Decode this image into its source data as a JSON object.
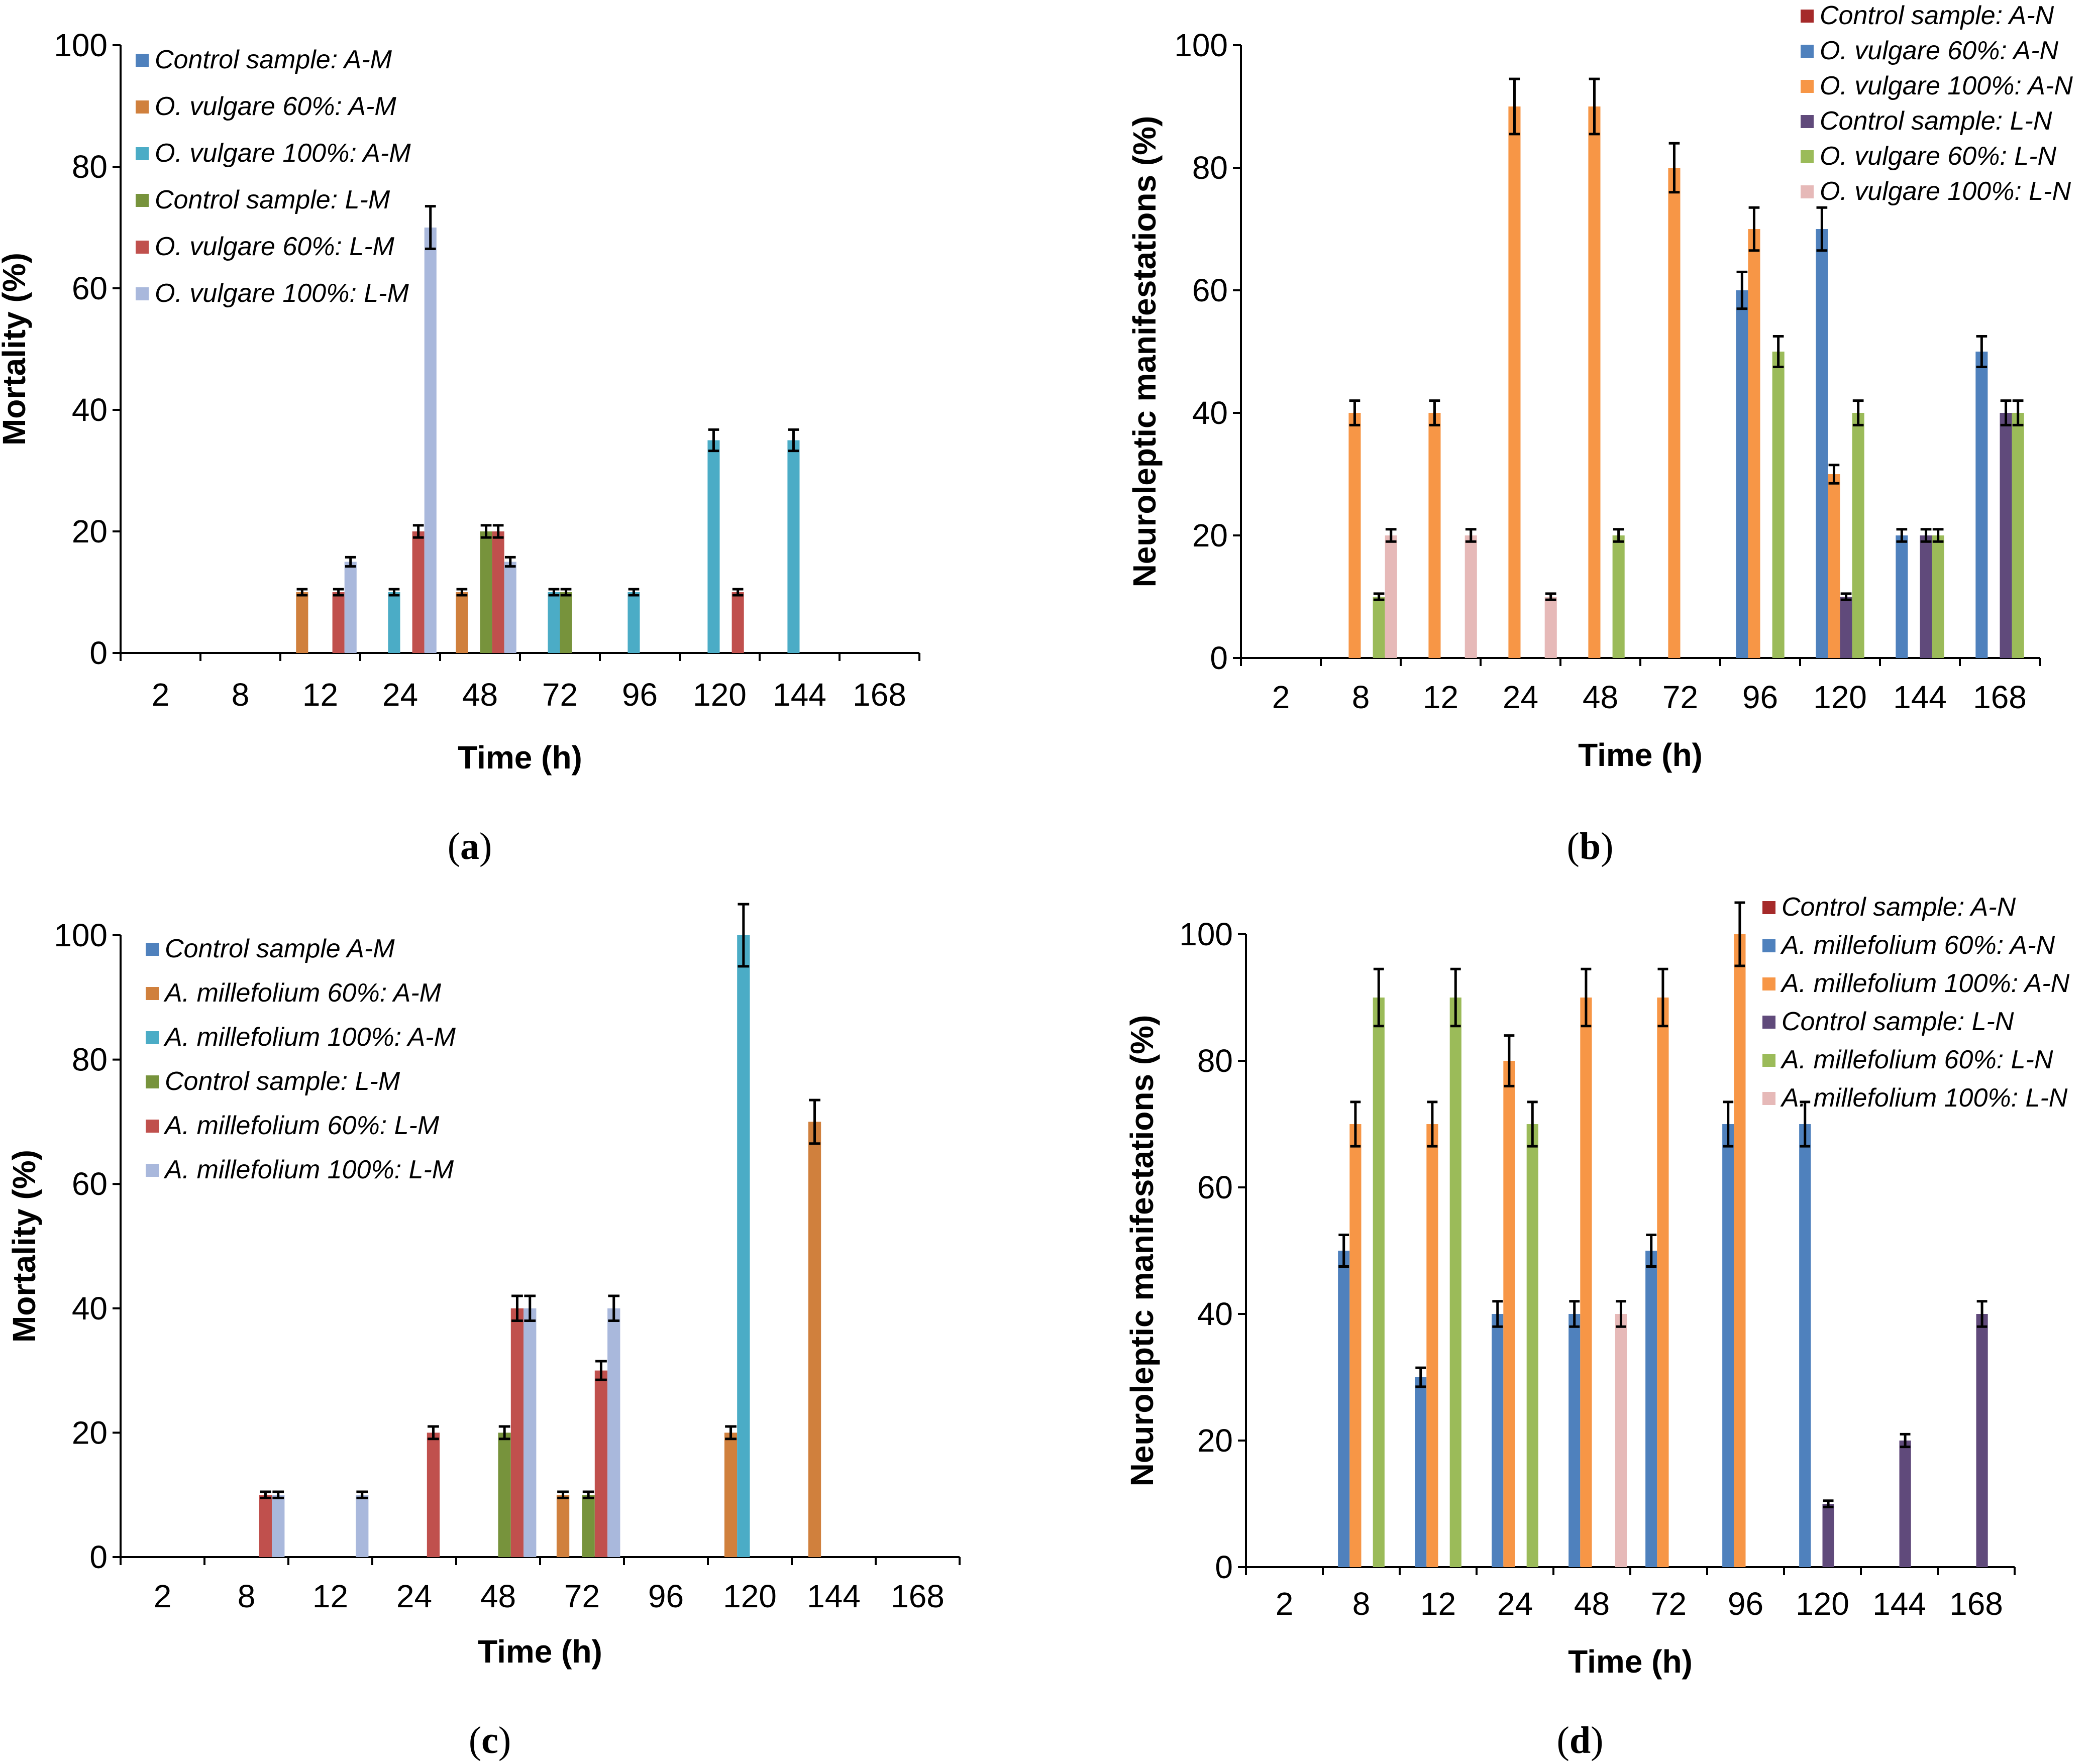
{
  "chart_data": [
    {
      "type": "bar",
      "caption_letter": "a",
      "xlabel": "Time (h)",
      "ylabel": "Mortality (%)",
      "ylim": [
        0,
        100
      ],
      "yticks": [
        "0",
        "20",
        "40",
        "60",
        "80",
        "100"
      ],
      "categories": [
        "2",
        "8",
        "12",
        "24",
        "48",
        "72",
        "96",
        "120",
        "144",
        "168"
      ],
      "legend_position": "top-left",
      "series": [
        {
          "name": "Control sample: A-M",
          "color": "#4f81bd",
          "values": [
            0,
            0,
            0,
            0,
            0,
            0,
            0,
            0,
            0,
            0
          ]
        },
        {
          "name": "O. vulgare 60%: A-M",
          "color": "#d0803d",
          "values": [
            0,
            0,
            10,
            0,
            10,
            0,
            0,
            0,
            0,
            0
          ]
        },
        {
          "name": "O. vulgare 100%: A-M",
          "color": "#4bacc6",
          "values": [
            0,
            0,
            0,
            10,
            0,
            10,
            10,
            35,
            35,
            0
          ]
        },
        {
          "name": "Control sample: L-M",
          "color": "#77933c",
          "values": [
            0,
            0,
            0,
            0,
            20,
            10,
            0,
            0,
            0,
            0
          ]
        },
        {
          "name": "O. vulgare 60%: L-M",
          "color": "#c0504d",
          "values": [
            0,
            0,
            10,
            20,
            20,
            0,
            0,
            10,
            0,
            0
          ]
        },
        {
          "name": "O. vulgare 100%: L-M",
          "color": "#a9b8dc",
          "values": [
            0,
            0,
            15,
            70,
            15,
            0,
            0,
            0,
            0,
            0
          ]
        }
      ]
    },
    {
      "type": "bar",
      "caption_letter": "b",
      "xlabel": "Time (h)",
      "ylabel": "Neuroleptic manifestations (%)",
      "ylim": [
        0,
        100
      ],
      "yticks": [
        "0",
        "20",
        "40",
        "60",
        "80",
        "100"
      ],
      "categories": [
        "2",
        "8",
        "12",
        "24",
        "48",
        "72",
        "96",
        "120",
        "144",
        "168"
      ],
      "legend_position": "top-right",
      "series": [
        {
          "name": "Control sample: A-N",
          "color": "#a52a2a",
          "values": [
            0,
            0,
            0,
            0,
            0,
            0,
            0,
            0,
            0,
            0
          ]
        },
        {
          "name": "O. vulgare 60%: A-N",
          "color": "#4f81bd",
          "values": [
            0,
            0,
            0,
            0,
            0,
            0,
            60,
            70,
            20,
            50
          ]
        },
        {
          "name": "O. vulgare 100%: A-N",
          "color": "#f79646",
          "values": [
            0,
            40,
            40,
            90,
            90,
            80,
            70,
            30,
            0,
            0
          ]
        },
        {
          "name": "Control sample: L-N",
          "color": "#604a7b",
          "values": [
            0,
            0,
            0,
            0,
            0,
            0,
            0,
            10,
            20,
            40
          ]
        },
        {
          "name": "O. vulgare 60%: L-N",
          "color": "#9bbb59",
          "values": [
            0,
            10,
            0,
            0,
            20,
            0,
            50,
            40,
            20,
            40
          ]
        },
        {
          "name": "O. vulgare 100%: L-N",
          "color": "#e6b9b8",
          "values": [
            0,
            20,
            20,
            10,
            0,
            0,
            0,
            0,
            0,
            0
          ]
        }
      ]
    },
    {
      "type": "bar",
      "caption_letter": "c",
      "xlabel": "Time (h)",
      "ylabel": "Mortality (%)",
      "ylim": [
        0,
        100
      ],
      "yticks": [
        "0",
        "20",
        "40",
        "60",
        "80",
        "100"
      ],
      "categories": [
        "2",
        "8",
        "12",
        "24",
        "48",
        "72",
        "96",
        "120",
        "144",
        "168"
      ],
      "legend_position": "top-left",
      "series": [
        {
          "name": "Control sample A-M",
          "color": "#4f81bd",
          "values": [
            0,
            0,
            0,
            0,
            0,
            0,
            0,
            0,
            0,
            0
          ]
        },
        {
          "name": "A. millefolium 60%: A-M",
          "color": "#d0803d",
          "values": [
            0,
            0,
            0,
            0,
            0,
            10,
            0,
            20,
            70,
            0
          ]
        },
        {
          "name": "A. millefolium 100%: A-M",
          "color": "#4bacc6",
          "values": [
            0,
            0,
            0,
            0,
            0,
            0,
            0,
            100,
            0,
            0
          ]
        },
        {
          "name": "Control sample: L-M",
          "color": "#77933c",
          "values": [
            0,
            0,
            0,
            0,
            20,
            10,
            0,
            0,
            0,
            0
          ]
        },
        {
          "name": "A. millefolium 60%: L-M",
          "color": "#c0504d",
          "values": [
            0,
            10,
            0,
            20,
            40,
            30,
            0,
            0,
            0,
            0
          ]
        },
        {
          "name": "A. millefolium 100%: L-M",
          "color": "#a9b8dc",
          "values": [
            0,
            10,
            10,
            0,
            40,
            40,
            0,
            0,
            0,
            0
          ]
        }
      ]
    },
    {
      "type": "bar",
      "caption_letter": "d",
      "xlabel": "Time (h)",
      "ylabel": "Neuroleptic manifestations (%)",
      "ylim": [
        0,
        100
      ],
      "yticks": [
        "0",
        "20",
        "40",
        "60",
        "80",
        "100"
      ],
      "categories": [
        "2",
        "8",
        "12",
        "24",
        "48",
        "72",
        "96",
        "120",
        "144",
        "168"
      ],
      "legend_position": "top-right",
      "series": [
        {
          "name": "Control sample: A-N",
          "color": "#a52a2a",
          "values": [
            0,
            0,
            0,
            0,
            0,
            0,
            0,
            0,
            0,
            0
          ]
        },
        {
          "name": "A. millefolium 60%: A-N",
          "color": "#4f81bd",
          "values": [
            0,
            50,
            30,
            40,
            40,
            50,
            70,
            70,
            0,
            0
          ]
        },
        {
          "name": "A. millefolium 100%: A-N",
          "color": "#f79646",
          "values": [
            0,
            70,
            70,
            80,
            90,
            90,
            100,
            0,
            0,
            0
          ]
        },
        {
          "name": "Control sample: L-N",
          "color": "#604a7b",
          "values": [
            0,
            0,
            0,
            0,
            0,
            0,
            0,
            10,
            20,
            40
          ]
        },
        {
          "name": "A. millefolium 60%: L-N",
          "color": "#9bbb59",
          "values": [
            0,
            90,
            90,
            70,
            0,
            0,
            0,
            0,
            0,
            0
          ]
        },
        {
          "name": "A. millefolium 100%: L-N",
          "color": "#e6b9b8",
          "values": [
            0,
            0,
            0,
            0,
            40,
            0,
            0,
            0,
            0,
            0
          ]
        }
      ]
    }
  ]
}
